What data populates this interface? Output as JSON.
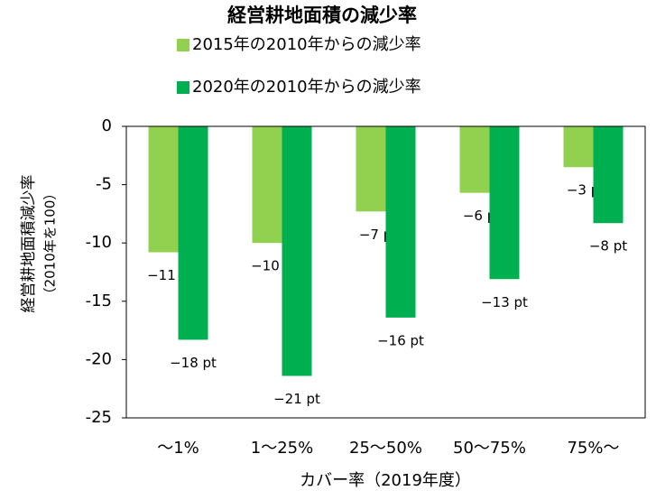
{
  "chart_data": {
    "type": "bar",
    "title": "経営耕地面積の減少率",
    "y_label": [
      "経営耕地面積減少率",
      "（2010年を100）"
    ],
    "x_label": "カバー率（2019年度）",
    "categories": [
      "～1%",
      "1～25%",
      "25～50%",
      "50～75%",
      "75%～"
    ],
    "series": [
      {
        "name": "2015年の2010年からの減少率",
        "color": "#92d050",
        "values": [
          -10.8,
          -10.0,
          -7.3,
          -5.7,
          -3.5
        ],
        "value_labels": [
          "−11 pt",
          "−10 pt",
          "−7 pt",
          "−6 pt",
          "−3 pt"
        ]
      },
      {
        "name": "2020年の2010年からの減少率",
        "color": "#00b050",
        "values": [
          -18.3,
          -21.4,
          -16.4,
          -13.1,
          -8.3
        ],
        "value_labels": [
          "−18 pt",
          "−21 pt",
          "−16 pt",
          "−13 pt",
          "−8 pt"
        ]
      }
    ],
    "ylim": [
      -25,
      0
    ],
    "yticks": [
      0,
      -5,
      -10,
      -15,
      -20,
      -25
    ],
    "grid": false
  }
}
